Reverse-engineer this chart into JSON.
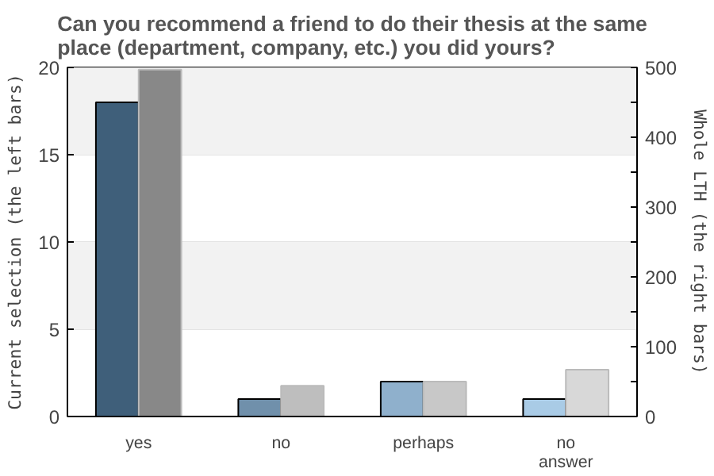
{
  "chart_data": {
    "type": "bar",
    "title": "Can you recommend a friend to do their thesis at the same place (department, company, etc.) you did yours?",
    "categories": [
      "yes",
      "no",
      "perhaps",
      "no answer"
    ],
    "ylabel": "Current selection (the left bars)",
    "y2label": "Whole LTH (the right bars)",
    "series": [
      {
        "colors": [
          "#3f5f7a",
          "#7090ab",
          "#8fb0cc",
          "#a9cbe6"
        ],
        "values": [
          18,
          1,
          2,
          1
        ]
      },
      {
        "colors": [
          "#888888",
          "#bebebe",
          "#c8c8c8",
          "#d8d8d8"
        ],
        "values": [
          497,
          44,
          50,
          67
        ],
        "axis": "y2"
      }
    ],
    "ylim": [
      0,
      20
    ],
    "yticks": [
      0,
      5,
      10,
      15,
      20
    ],
    "y2lim": [
      0,
      500
    ],
    "y2ticks": [
      0,
      {
        "value": 50,
        "label": null
      },
      100,
      {
        "value": 150,
        "label": null
      },
      200,
      {
        "value": 250,
        "label": null
      },
      300,
      {
        "value": 350,
        "label": null
      },
      400,
      {
        "value": 450,
        "label": null
      },
      500
    ],
    "bands": [
      {
        "axis": "y",
        "from": 5,
        "to": 10,
        "color": "#f2f2f2"
      },
      {
        "axis": "y",
        "from": 15,
        "to": 20,
        "color": "#f2f2f2"
      }
    ],
    "grid": "y"
  }
}
